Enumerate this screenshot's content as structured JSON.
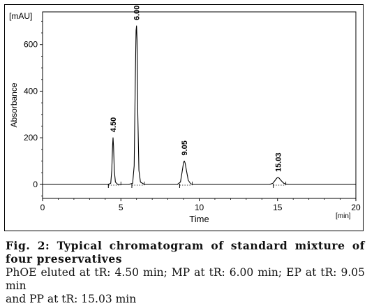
{
  "chart_data": {
    "type": "line",
    "y_unit_label": "[mAU]",
    "x_unit_label": "[min]",
    "xlabel": "Time",
    "ylabel": "Absorbance",
    "xlim": [
      0,
      20
    ],
    "ylim": [
      -60,
      740
    ],
    "x_ticks": [
      0,
      5,
      10,
      15,
      20
    ],
    "y_ticks": [
      0,
      200,
      400,
      600
    ],
    "series": [
      {
        "x": [
          -1,
          4.2,
          4.35,
          4.42,
          4.47,
          4.5,
          4.53,
          4.58,
          4.65,
          4.8,
          5.5,
          5.75,
          5.85,
          5.92,
          5.97,
          6.0,
          6.03,
          6.08,
          6.15,
          6.25,
          6.5,
          8.6,
          8.8,
          8.9,
          9.0,
          9.05,
          9.1,
          9.2,
          9.3,
          9.45,
          9.6,
          14.5,
          14.7,
          14.85,
          14.95,
          15.03,
          15.1,
          15.25,
          15.4,
          15.55,
          15.7,
          21
        ],
        "y": [
          0,
          0,
          5,
          60,
          170,
          200,
          165,
          60,
          10,
          0,
          0,
          5,
          80,
          450,
          660,
          680,
          620,
          300,
          60,
          10,
          0,
          0,
          10,
          50,
          95,
          100,
          92,
          55,
          18,
          3,
          0,
          0,
          5,
          18,
          27,
          30,
          27,
          15,
          5,
          1,
          0,
          0
        ]
      }
    ],
    "peaks": [
      {
        "x": 4.5,
        "y": 200,
        "label": "4.50"
      },
      {
        "x": 6.0,
        "y": 680,
        "label": "6.00"
      },
      {
        "x": 9.05,
        "y": 100,
        "label": "9.05"
      },
      {
        "x": 15.03,
        "y": 30,
        "label": "15.03"
      }
    ]
  },
  "caption": {
    "title": "Fig. 2: Typical chromatogram of standard mixture of four preservatives",
    "body_lines": [
      "PhOE eluted at tR: 4.50 min; MP at tR: 6.00 min; EP at tR: 9.05 min",
      "and PP at tR: 15.03 min"
    ]
  }
}
